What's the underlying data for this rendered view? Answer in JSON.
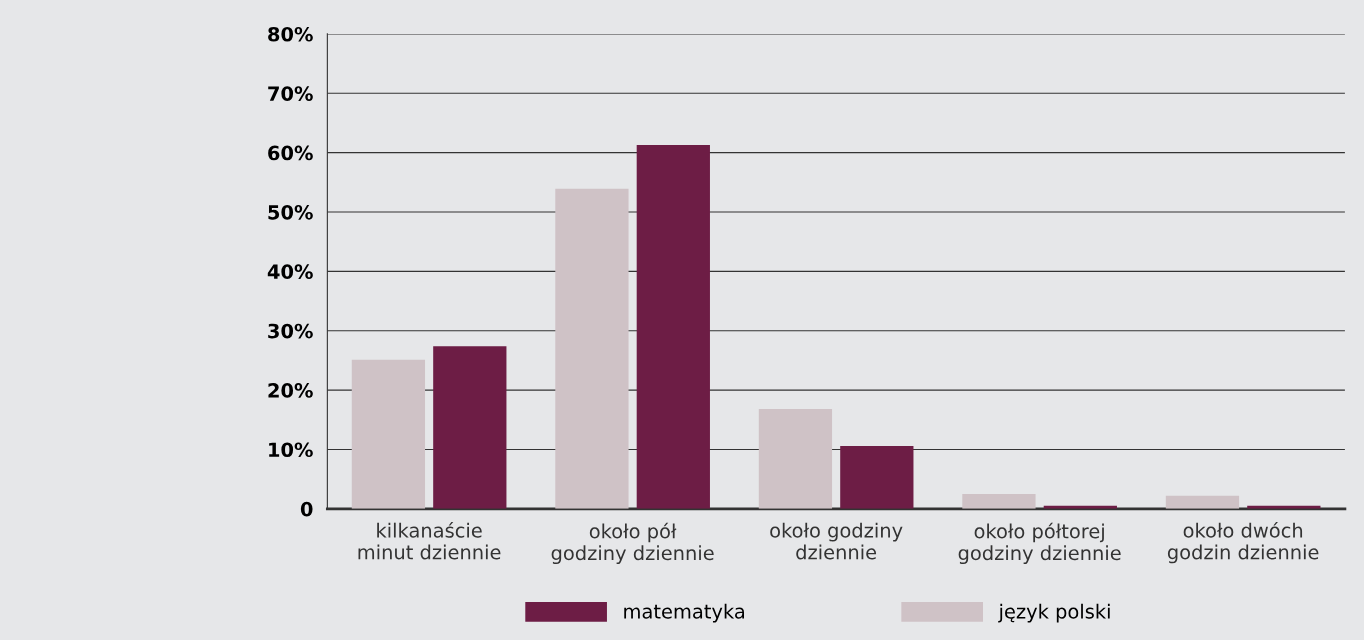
{
  "chart_data": {
    "type": "bar",
    "categories": [
      "kilkanaście\nminut dziennie",
      "około pół\ngodziny dziennie",
      "około godziny\ndziennie",
      "około półtorej\ngodziny dziennie",
      "około dwóch\ngodzin dziennie"
    ],
    "series": [
      {
        "name": "język polski",
        "color": "#cfc2c6",
        "values": [
          25.1,
          53.9,
          16.8,
          2.5,
          2.2
        ]
      },
      {
        "name": "matematyka",
        "color": "#6d1d45",
        "values": [
          27.4,
          61.3,
          10.6,
          0.5,
          0.5
        ]
      }
    ],
    "ylim": [
      0,
      80
    ],
    "yticks": [
      0,
      {
        "value": 10,
        "label": "10%"
      },
      {
        "value": 20,
        "label": "20%"
      },
      {
        "value": 30,
        "label": "30%"
      },
      {
        "value": 40,
        "label": "40%"
      },
      {
        "value": 50,
        "label": "50%"
      },
      {
        "value": 60,
        "label": "60%"
      },
      {
        "value": 70,
        "label": "70%"
      },
      {
        "value": 80,
        "label": "80%"
      }
    ],
    "grid": "y",
    "legend": "bottom"
  }
}
